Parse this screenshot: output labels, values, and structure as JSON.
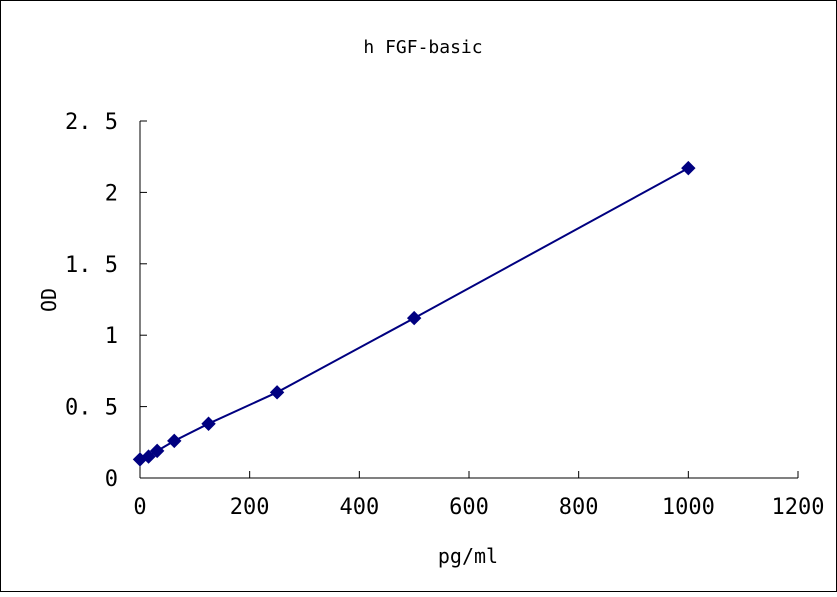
{
  "chart_data": {
    "type": "line",
    "title": "h FGF-basic",
    "xlabel": "pg/ml",
    "ylabel": "OD",
    "xlim": [
      0,
      1200
    ],
    "ylim": [
      0,
      2.5
    ],
    "x_ticks": [
      "0",
      "200",
      "400",
      "600",
      "800",
      "1000",
      "1200"
    ],
    "y_ticks": [
      "0",
      "0. 5",
      "1",
      "1. 5",
      "2",
      "2. 5"
    ],
    "x_tick_values": [
      0,
      200,
      400,
      600,
      800,
      1000,
      1200
    ],
    "y_tick_values": [
      0,
      0.5,
      1,
      1.5,
      2,
      2.5
    ],
    "grid": false,
    "series": [
      {
        "color": "#000080",
        "marker": "diamond",
        "x": [
          0,
          15.6,
          31.3,
          62.5,
          125,
          250,
          500,
          1000
        ],
        "y": [
          0.13,
          0.15,
          0.19,
          0.26,
          0.38,
          0.6,
          1.12,
          2.17
        ]
      }
    ]
  }
}
